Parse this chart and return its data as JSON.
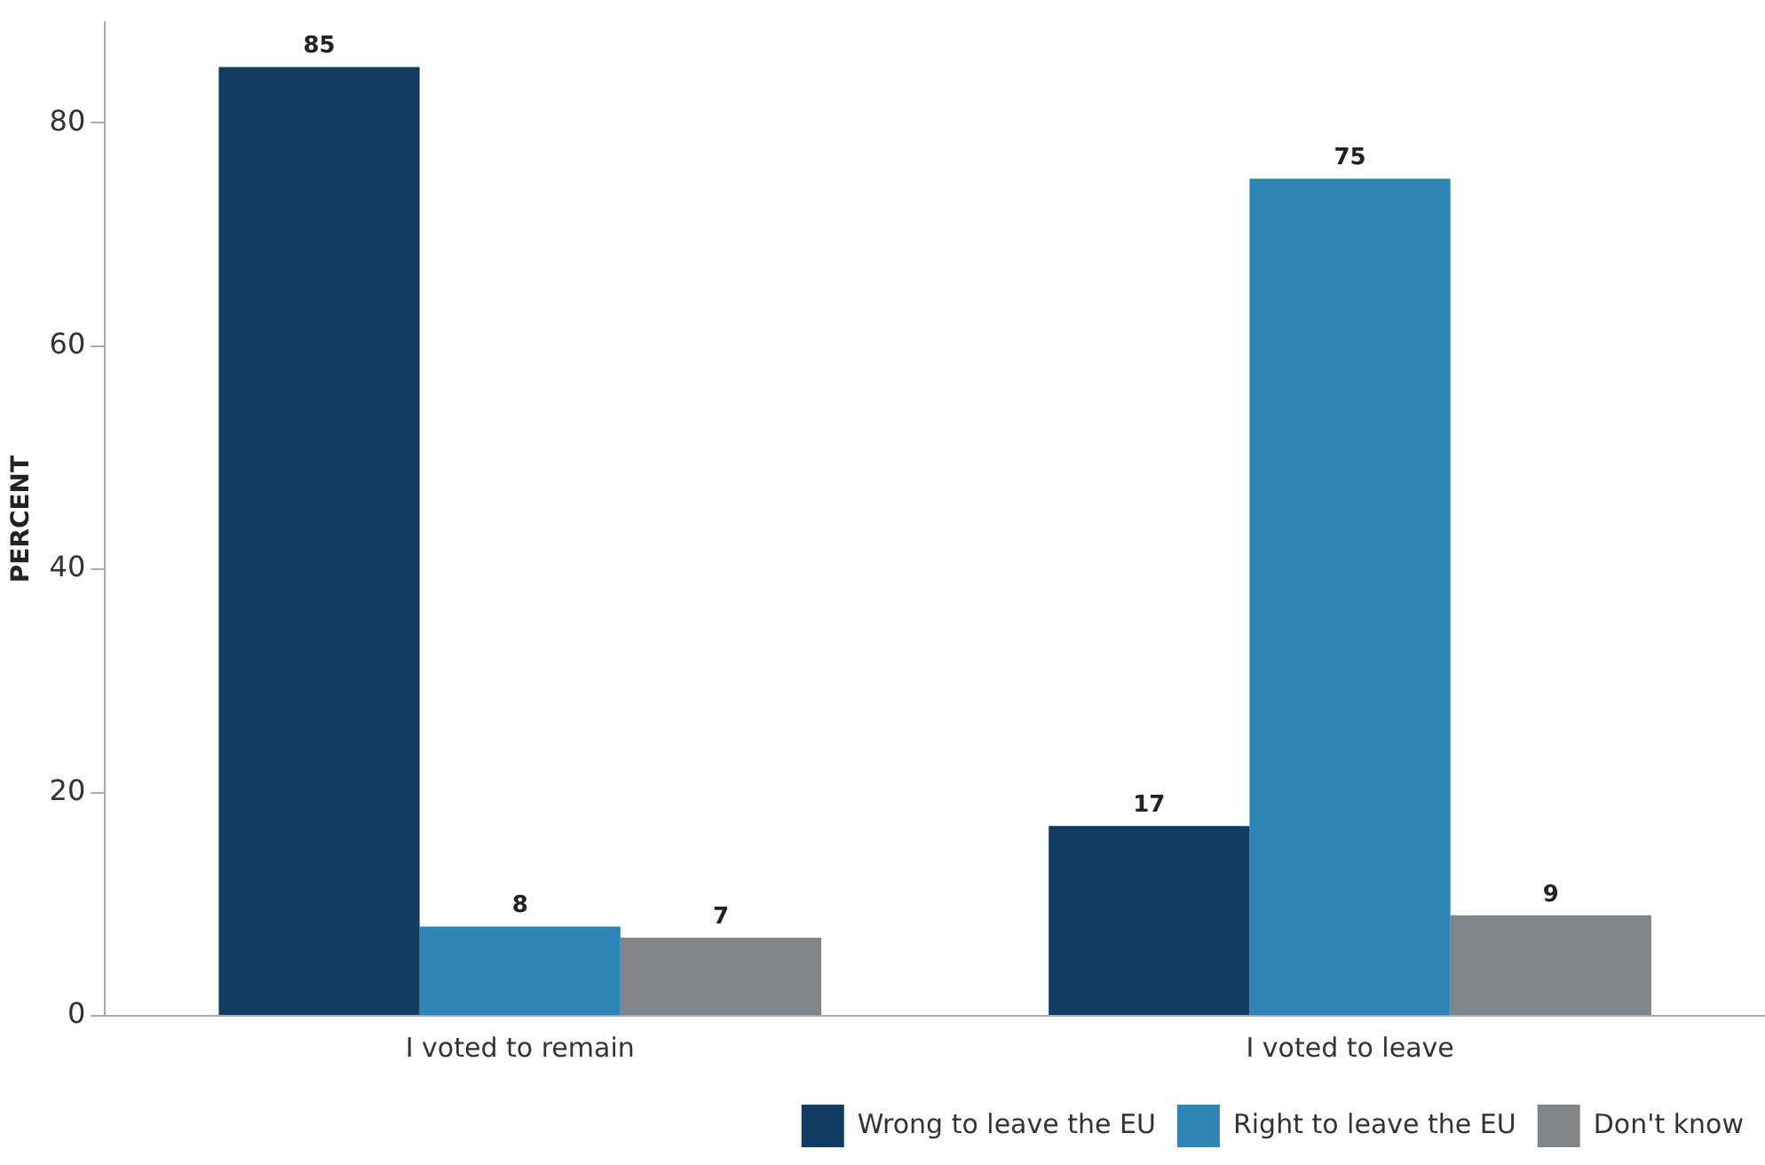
{
  "chart_data": {
    "type": "bar",
    "ylabel": "PERCENT",
    "categories": [
      "I voted to remain",
      "I voted to leave"
    ],
    "series": [
      {
        "name": "Wrong to leave the EU",
        "color": "#133c63",
        "values": [
          85,
          17
        ]
      },
      {
        "name": "Right to leave the EU",
        "color": "#2e86b5",
        "values": [
          8,
          75
        ]
      },
      {
        "name": "Don't know",
        "color": "#808589",
        "values": [
          7,
          9
        ]
      }
    ],
    "ylim": [
      0,
      89
    ],
    "yticks": [
      0,
      20,
      40,
      60,
      80
    ],
    "grid": false,
    "legend": "bottom right",
    "data_labels": true
  }
}
